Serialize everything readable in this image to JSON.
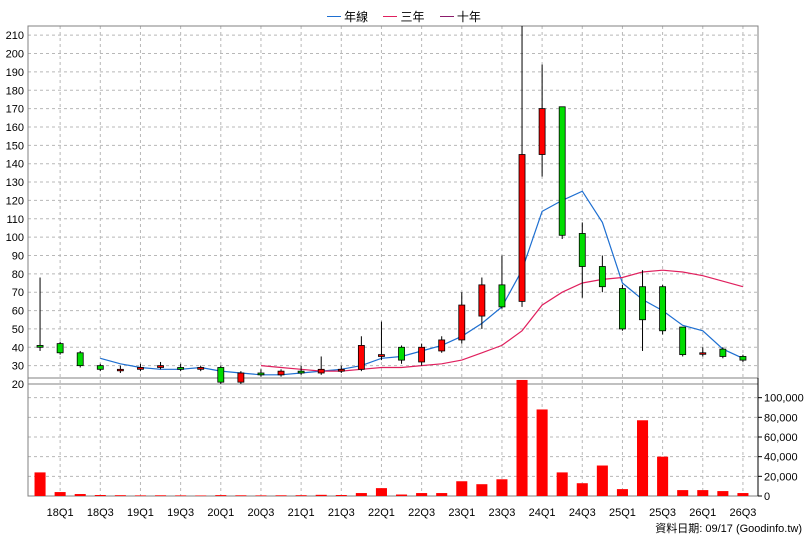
{
  "legend": {
    "items": [
      {
        "label": "年線",
        "color": "#1e6fd1"
      },
      {
        "label": "三年",
        "color": "#e0205e"
      },
      {
        "label": "十年",
        "color": "#8b1a6b"
      }
    ]
  },
  "footer": {
    "source": "資料日期: 09/17  (Goodinfo.tw)"
  },
  "chart_data": {
    "type": "candlestick-with-volume",
    "frequency": "quarterly",
    "colors": {
      "up": "#ff0000",
      "down": "#00dd00",
      "volume": "#ff0000",
      "ma_year": "#1e6fd1",
      "ma_3y": "#e0205e"
    },
    "price_axis": {
      "min": 20,
      "max": 215,
      "ticks": [
        20,
        30,
        40,
        50,
        60,
        70,
        80,
        90,
        100,
        110,
        120,
        130,
        140,
        150,
        160,
        170,
        180,
        190,
        200,
        210
      ]
    },
    "volume_axis": {
      "min": 0,
      "max": 120000,
      "ticks": [
        0,
        20000,
        40000,
        60000,
        80000,
        100000
      ],
      "tick_labels": [
        "0",
        "20,000",
        "40,000",
        "60,000",
        "80,000",
        "100,000"
      ]
    },
    "x_tick_labels": [
      "18Q1",
      "18Q3",
      "19Q1",
      "19Q3",
      "20Q1",
      "20Q3",
      "21Q1",
      "21Q3",
      "22Q1",
      "22Q3",
      "23Q1",
      "23Q3",
      "24Q1",
      "24Q3",
      "25Q1",
      "25Q3",
      "26Q1",
      "26Q3"
    ],
    "candles": [
      {
        "q": "17Q4",
        "o": 41,
        "h": 78,
        "l": 38,
        "c": 40,
        "v": 24000
      },
      {
        "q": "18Q1",
        "o": 42,
        "h": 43,
        "l": 36,
        "c": 37,
        "v": 4000
      },
      {
        "q": "18Q2",
        "o": 37,
        "h": 38,
        "l": 29,
        "c": 30,
        "v": 2000
      },
      {
        "q": "18Q3",
        "o": 30,
        "h": 31,
        "l": 27,
        "c": 28,
        "v": 1000
      },
      {
        "q": "18Q4",
        "o": 28,
        "h": 30,
        "l": 26,
        "c": 28,
        "v": 800
      },
      {
        "q": "19Q1",
        "o": 28,
        "h": 31,
        "l": 27,
        "c": 29,
        "v": 600
      },
      {
        "q": "19Q2",
        "o": 29,
        "h": 32,
        "l": 28,
        "c": 30,
        "v": 700
      },
      {
        "q": "19Q3",
        "o": 29,
        "h": 31,
        "l": 27,
        "c": 28,
        "v": 600
      },
      {
        "q": "19Q4",
        "o": 28,
        "h": 30,
        "l": 27,
        "c": 29,
        "v": 500
      },
      {
        "q": "20Q1",
        "o": 29,
        "h": 30,
        "l": 20,
        "c": 21,
        "v": 900
      },
      {
        "q": "20Q2",
        "o": 21,
        "h": 27,
        "l": 20,
        "c": 26,
        "v": 700
      },
      {
        "q": "20Q3",
        "o": 26,
        "h": 28,
        "l": 24,
        "c": 25,
        "v": 600
      },
      {
        "q": "20Q4",
        "o": 25,
        "h": 28,
        "l": 24,
        "c": 27,
        "v": 700
      },
      {
        "q": "21Q1",
        "o": 27,
        "h": 30,
        "l": 25,
        "c": 26,
        "v": 800
      },
      {
        "q": "21Q2",
        "o": 26,
        "h": 35,
        "l": 25,
        "c": 28,
        "v": 1200
      },
      {
        "q": "21Q3",
        "o": 27,
        "h": 30,
        "l": 26,
        "c": 28,
        "v": 1000
      },
      {
        "q": "21Q4",
        "o": 28,
        "h": 46,
        "l": 27,
        "c": 41,
        "v": 3000
      },
      {
        "q": "22Q1",
        "o": 35,
        "h": 54,
        "l": 33,
        "c": 36,
        "v": 8000
      },
      {
        "q": "22Q2",
        "o": 40,
        "h": 41,
        "l": 31,
        "c": 33,
        "v": 1500
      },
      {
        "q": "22Q3",
        "o": 32,
        "h": 42,
        "l": 30,
        "c": 40,
        "v": 3000
      },
      {
        "q": "22Q4",
        "o": 38,
        "h": 46,
        "l": 37,
        "c": 44,
        "v": 3000
      },
      {
        "q": "23Q1",
        "o": 44,
        "h": 70,
        "l": 42,
        "c": 63,
        "v": 15000
      },
      {
        "q": "23Q2",
        "o": 57,
        "h": 78,
        "l": 50,
        "c": 74,
        "v": 12000
      },
      {
        "q": "23Q3",
        "o": 74,
        "h": 90,
        "l": 61,
        "c": 62,
        "v": 17000
      },
      {
        "q": "23Q4",
        "o": 65,
        "h": 215,
        "l": 62,
        "c": 145,
        "v": 118000
      },
      {
        "q": "24Q1",
        "o": 145,
        "h": 194,
        "l": 133,
        "c": 170,
        "v": 88000
      },
      {
        "q": "24Q2",
        "o": 171,
        "h": 171,
        "l": 99,
        "c": 101,
        "v": 24000
      },
      {
        "q": "24Q3",
        "o": 102,
        "h": 108,
        "l": 67,
        "c": 84,
        "v": 13000
      },
      {
        "q": "24Q4",
        "o": 84,
        "h": 90,
        "l": 70,
        "c": 73,
        "v": 31000
      },
      {
        "q": "25Q1",
        "o": 72,
        "h": 74,
        "l": 49,
        "c": 50,
        "v": 7000
      },
      {
        "q": "25Q2",
        "o": 73,
        "h": 82,
        "l": 38,
        "c": 55,
        "v": 77000
      },
      {
        "q": "25Q3",
        "o": 73,
        "h": 74,
        "l": 47,
        "c": 49,
        "v": 40000
      },
      {
        "q": "25Q4",
        "o": 51,
        "h": 51,
        "l": 35,
        "c": 36,
        "v": 6000
      },
      {
        "q": "26Q1",
        "o": 37,
        "h": 40,
        "l": 35,
        "c": 37,
        "v": 6000
      },
      {
        "q": "26Q2",
        "o": 39,
        "h": 40,
        "l": 34,
        "c": 35,
        "v": 5000
      },
      {
        "q": "26Q3",
        "o": 35,
        "h": 36,
        "l": 32,
        "c": 33,
        "v": 3000
      }
    ],
    "ma_year": [
      {
        "i": 3,
        "v": 34
      },
      {
        "i": 4,
        "v": 31
      },
      {
        "i": 5,
        "v": 29
      },
      {
        "i": 6,
        "v": 28
      },
      {
        "i": 7,
        "v": 28
      },
      {
        "i": 8,
        "v": 29
      },
      {
        "i": 9,
        "v": 27
      },
      {
        "i": 10,
        "v": 26
      },
      {
        "i": 11,
        "v": 25
      },
      {
        "i": 12,
        "v": 25
      },
      {
        "i": 13,
        "v": 26
      },
      {
        "i": 14,
        "v": 27
      },
      {
        "i": 15,
        "v": 28
      },
      {
        "i": 16,
        "v": 30
      },
      {
        "i": 17,
        "v": 34
      },
      {
        "i": 18,
        "v": 35
      },
      {
        "i": 19,
        "v": 38
      },
      {
        "i": 20,
        "v": 41
      },
      {
        "i": 21,
        "v": 46
      },
      {
        "i": 22,
        "v": 53
      },
      {
        "i": 23,
        "v": 62
      },
      {
        "i": 24,
        "v": 82
      },
      {
        "i": 25,
        "v": 114
      },
      {
        "i": 26,
        "v": 120
      },
      {
        "i": 27,
        "v": 125
      },
      {
        "i": 28,
        "v": 108
      },
      {
        "i": 29,
        "v": 75
      },
      {
        "i": 30,
        "v": 66
      },
      {
        "i": 31,
        "v": 60
      },
      {
        "i": 32,
        "v": 52
      },
      {
        "i": 33,
        "v": 49
      },
      {
        "i": 34,
        "v": 39
      },
      {
        "i": 35,
        "v": 34
      }
    ],
    "ma_3y": [
      {
        "i": 11,
        "v": 30
      },
      {
        "i": 12,
        "v": 29
      },
      {
        "i": 13,
        "v": 28
      },
      {
        "i": 14,
        "v": 27
      },
      {
        "i": 15,
        "v": 27
      },
      {
        "i": 16,
        "v": 28
      },
      {
        "i": 17,
        "v": 29
      },
      {
        "i": 18,
        "v": 29
      },
      {
        "i": 19,
        "v": 30
      },
      {
        "i": 20,
        "v": 31
      },
      {
        "i": 21,
        "v": 33
      },
      {
        "i": 22,
        "v": 37
      },
      {
        "i": 23,
        "v": 41
      },
      {
        "i": 24,
        "v": 49
      },
      {
        "i": 25,
        "v": 63
      },
      {
        "i": 26,
        "v": 70
      },
      {
        "i": 27,
        "v": 75
      },
      {
        "i": 28,
        "v": 77
      },
      {
        "i": 29,
        "v": 78
      },
      {
        "i": 30,
        "v": 81
      },
      {
        "i": 31,
        "v": 82
      },
      {
        "i": 32,
        "v": 81
      },
      {
        "i": 33,
        "v": 79
      },
      {
        "i": 34,
        "v": 76
      },
      {
        "i": 35,
        "v": 73
      }
    ]
  }
}
